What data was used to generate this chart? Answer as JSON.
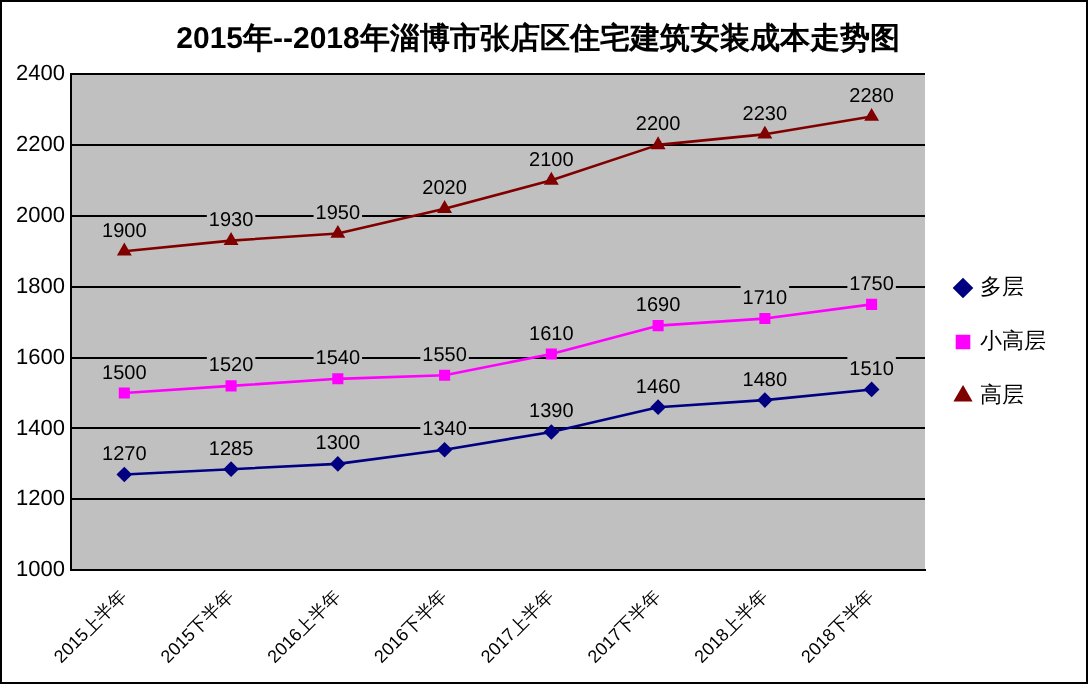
{
  "chart_data": {
    "type": "line",
    "title": "2015年--2018年淄博市张店区住宅建筑安装成本走势图",
    "categories": [
      "2015上半年",
      "2015下半年",
      "2016上半年",
      "2016下半年",
      "2017上半年",
      "2017下半年",
      "2018上半年",
      "2018下半年"
    ],
    "series": [
      {
        "name": "多层",
        "color": "#000080",
        "marker": "diamond",
        "values": [
          1270,
          1285,
          1300,
          1340,
          1390,
          1460,
          1480,
          1510
        ]
      },
      {
        "name": "小高层",
        "color": "#ff00ff",
        "marker": "square",
        "values": [
          1500,
          1520,
          1540,
          1550,
          1610,
          1690,
          1710,
          1750
        ]
      },
      {
        "name": "高层",
        "color": "#800000",
        "marker": "triangle",
        "values": [
          1900,
          1930,
          1950,
          2020,
          2100,
          2200,
          2230,
          2280
        ]
      }
    ],
    "ylim": [
      1000,
      2400
    ],
    "yticks": [
      1000,
      1200,
      1400,
      1600,
      1800,
      2000,
      2200,
      2400
    ],
    "grid": "y",
    "legend": "right",
    "data_labels": true
  }
}
